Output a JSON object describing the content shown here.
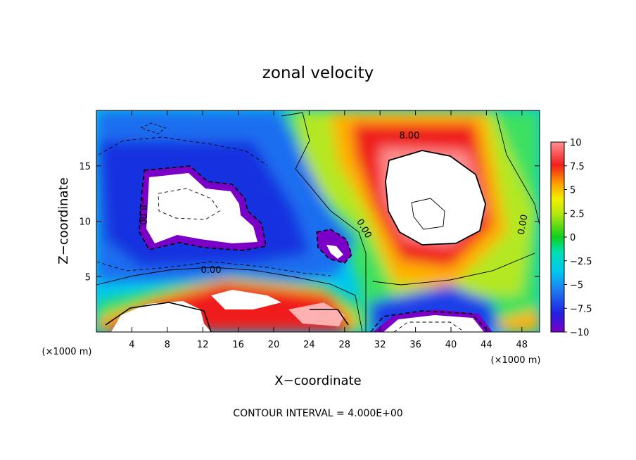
{
  "chart_data": {
    "type": "heatmap",
    "title": "zonal velocity",
    "xlabel": "X−coordinate",
    "ylabel": "Z−coordinate",
    "x_unit_left": "(×1000 m)",
    "x_unit_right": "(×1000 m)",
    "xlim": [
      0,
      50
    ],
    "ylim": [
      0,
      20
    ],
    "x_ticks": [
      4,
      8,
      12,
      16,
      20,
      24,
      28,
      32,
      36,
      40,
      44,
      48
    ],
    "y_ticks": [
      5,
      10,
      15
    ],
    "colorbar": {
      "range": [
        -10,
        10
      ],
      "ticks": [
        10,
        7.5,
        5,
        2.5,
        0,
        -2.5,
        -5,
        -7.5,
        -10
      ],
      "tick_labels": [
        "10",
        "7.5",
        "5",
        "2.5",
        "0",
        "−2.5",
        "−5",
        "−7.5",
        "−10"
      ]
    },
    "contour_labels": [
      {
        "text": "8.00",
        "x": 36,
        "y": 17.5
      },
      {
        "text": "0.00",
        "x": 12,
        "y": 5.5
      },
      {
        "text": "0.00",
        "x": 28.5,
        "y": 9.5
      },
      {
        "text": "0.00",
        "x": 47,
        "y": 9.8
      },
      {
        "text": "−8.00",
        "x": 5,
        "y": 10.5
      }
    ],
    "footer": "CONTOUR INTERVAL = 4.000E+00"
  }
}
